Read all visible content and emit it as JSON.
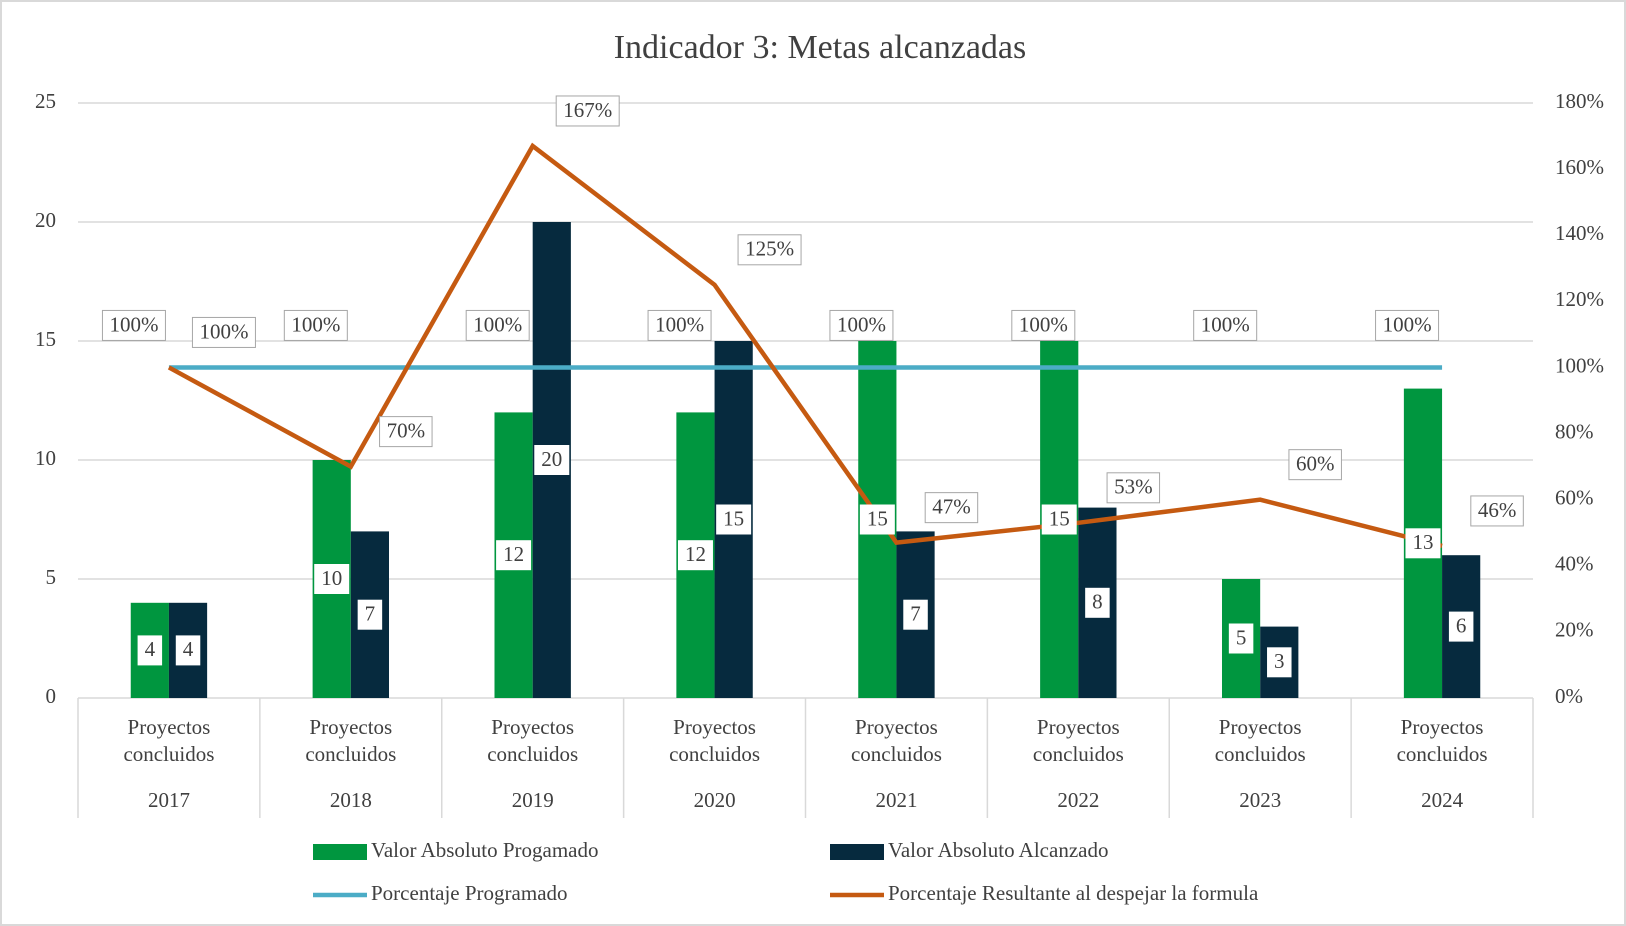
{
  "chart_data": {
    "type": "bar-line",
    "title": "Indicador 3: Metas alcanzadas",
    "categories": [
      "Proyectos concluidos",
      "Proyectos concluidos",
      "Proyectos concluidos",
      "Proyectos concluidos",
      "Proyectos concluidos",
      "Proyectos concluidos",
      "Proyectos concluidos",
      "Proyectos concluidos"
    ],
    "category_groups": [
      "2017",
      "2018",
      "2019",
      "2020",
      "2021",
      "2022",
      "2023",
      "2024"
    ],
    "series": [
      {
        "name": "Valor Absoluto Progamado",
        "type": "bar",
        "color": "#00963f",
        "values": [
          4,
          10,
          12,
          12,
          15,
          15,
          5,
          13
        ]
      },
      {
        "name": "Valor Absoluto Alcanzado",
        "type": "bar",
        "color": "#062a3e",
        "values": [
          4,
          7,
          20,
          15,
          7,
          8,
          3,
          6
        ]
      },
      {
        "name": "Porcentaje Programado",
        "type": "line",
        "axis": "y2",
        "color": "#4bacc6",
        "values": [
          100,
          100,
          100,
          100,
          100,
          100,
          100,
          100
        ],
        "value_labels": [
          "100%",
          "100%",
          "100%",
          "100%",
          "100%",
          "100%",
          "100%",
          "100%"
        ]
      },
      {
        "name": "Porcentaje Resultante al despejar la formula",
        "type": "line",
        "axis": "y2",
        "color": "#c55a11",
        "values": [
          100,
          70,
          167,
          125,
          47,
          53,
          60,
          46
        ],
        "value_labels": [
          "100%",
          "70%",
          "167%",
          "125%",
          "47%",
          "53%",
          "60%",
          "46%"
        ]
      }
    ],
    "ylim": [
      0,
      25
    ],
    "yticks": [
      0,
      5,
      10,
      15,
      20,
      25
    ],
    "y2lim": [
      0,
      180
    ],
    "y2ticks": [
      {
        "value": 0,
        "label": "0%"
      },
      {
        "value": 20,
        "label": "20%"
      },
      {
        "value": 40,
        "label": "40%"
      },
      {
        "value": 60,
        "label": "60%"
      },
      {
        "value": 80,
        "label": "80%"
      },
      {
        "value": 100,
        "label": "100%"
      },
      {
        "value": 120,
        "label": "120%"
      },
      {
        "value": 140,
        "label": "140%"
      },
      {
        "value": 160,
        "label": "160%"
      },
      {
        "value": 180,
        "label": "180%"
      }
    ],
    "grid": true,
    "legend": "bottom"
  }
}
